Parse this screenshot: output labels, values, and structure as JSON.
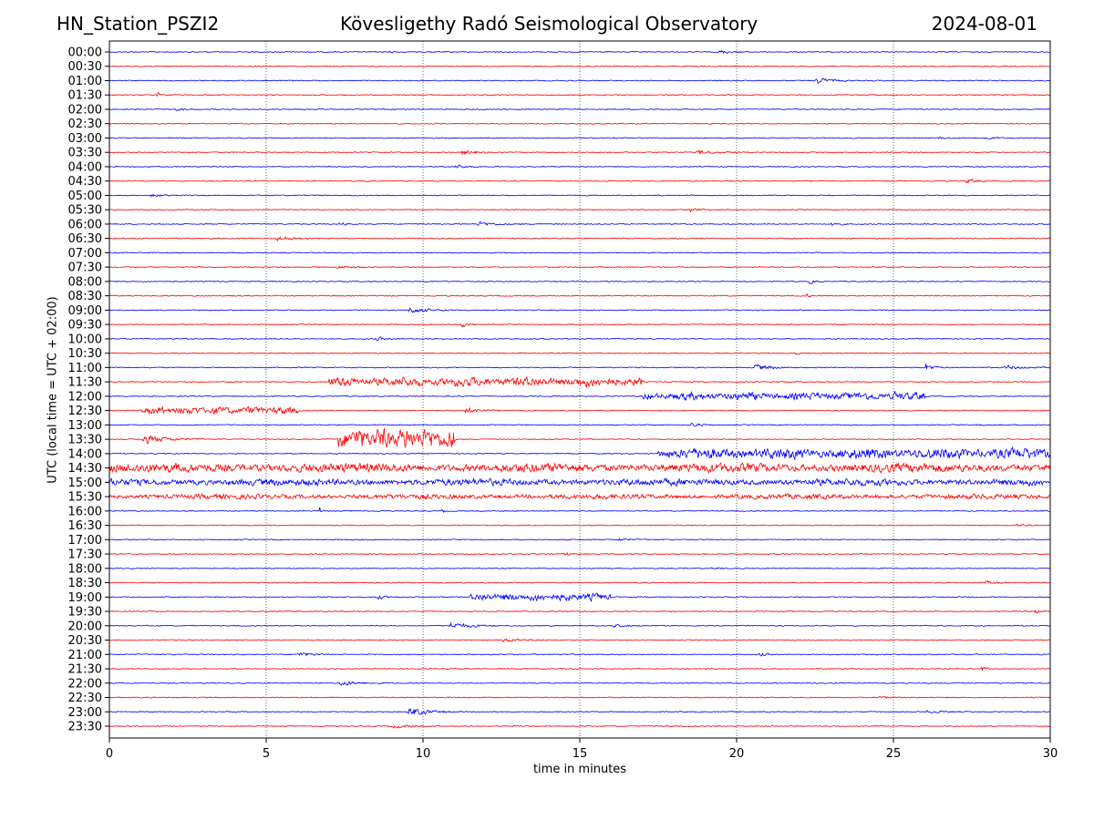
{
  "header": {
    "station": "HN_Station_PSZI2",
    "observatory": "Kövesligethy Radó Seismological Observatory",
    "date": "2024-08-01"
  },
  "chart_data": {
    "type": "line",
    "subtype": "helicorder",
    "title": "Kövesligethy Radó Seismological Observatory",
    "xlabel": "time in minutes",
    "ylabel": "UTC (local time = UTC + 02:00)",
    "xlim": [
      0,
      30
    ],
    "xticks": [
      "0",
      "5",
      "10",
      "15",
      "20",
      "25",
      "30"
    ],
    "grid": "vertical dotted at x ticks",
    "colors": [
      "#0000ff",
      "#ff0000"
    ],
    "rows": [
      "00:00",
      "00:30",
      "01:00",
      "01:30",
      "02:00",
      "02:30",
      "03:00",
      "03:30",
      "04:00",
      "04:30",
      "05:00",
      "05:30",
      "06:00",
      "06:30",
      "07:00",
      "07:30",
      "08:00",
      "08:30",
      "09:00",
      "09:30",
      "10:00",
      "10:30",
      "11:00",
      "11:30",
      "12:00",
      "12:30",
      "13:00",
      "13:30",
      "14:00",
      "14:30",
      "15:00",
      "15:30",
      "16:00",
      "16:30",
      "17:00",
      "17:30",
      "18:00",
      "18:30",
      "19:00",
      "19:30",
      "20:00",
      "20:30",
      "21:00",
      "21:30",
      "22:00",
      "22:30",
      "23:00",
      "23:30"
    ],
    "events": [
      [
        "00:00",
        8.8,
        9.3,
        1
      ],
      [
        "00:00",
        19.4,
        20.6,
        1
      ],
      [
        "01:00",
        22.5,
        23.6,
        2
      ],
      [
        "01:30",
        1.5,
        2.1,
        1.5
      ],
      [
        "02:00",
        2.1,
        2.8,
        1
      ],
      [
        "03:00",
        26.4,
        27.1,
        0.8
      ],
      [
        "03:00",
        27.9,
        28.6,
        1
      ],
      [
        "03:30",
        11.2,
        12.3,
        1.5
      ],
      [
        "03:30",
        18.7,
        20.3,
        1.2
      ],
      [
        "04:00",
        11.0,
        12.0,
        1.2
      ],
      [
        "04:30",
        27.3,
        28.1,
        1.5
      ],
      [
        "05:00",
        1.3,
        2.2,
        1
      ],
      [
        "05:30",
        18.5,
        19.2,
        1.2
      ],
      [
        "06:00",
        7.3,
        7.8,
        1
      ],
      [
        "06:00",
        11.7,
        13.2,
        1.3
      ],
      [
        "06:00",
        23.0,
        23.7,
        1
      ],
      [
        "06:30",
        5.3,
        6.5,
        1.5
      ],
      [
        "07:30",
        7.2,
        8.6,
        1
      ],
      [
        "08:00",
        22.3,
        22.9,
        1.2
      ],
      [
        "08:30",
        22.2,
        22.5,
        1.2
      ],
      [
        "09:00",
        9.5,
        11.0,
        2
      ],
      [
        "09:30",
        11.2,
        11.7,
        2
      ],
      [
        "10:00",
        8.5,
        9.2,
        1.2
      ],
      [
        "10:30",
        21.8,
        22.2,
        1
      ],
      [
        "11:00",
        20.5,
        22.0,
        2
      ],
      [
        "11:00",
        26.0,
        26.6,
        3
      ],
      [
        "11:00",
        28.5,
        30,
        1.3
      ],
      [
        "11:30",
        7.0,
        17.0,
        2.5
      ],
      [
        "12:00",
        17.0,
        26.0,
        2
      ],
      [
        "12:00",
        25.0,
        25.3,
        3
      ],
      [
        "12:30",
        1.0,
        6.0,
        2
      ],
      [
        "12:30",
        11.3,
        12.5,
        2
      ],
      [
        "13:00",
        18.5,
        19.3,
        1.5
      ],
      [
        "13:00",
        27.6,
        28.0,
        1.5
      ],
      [
        "13:30",
        1.0,
        3.0,
        3
      ],
      [
        "13:30",
        7.3,
        11.0,
        6
      ],
      [
        "14:00",
        17.5,
        30.0,
        3
      ],
      [
        "14:30",
        0.0,
        30.0,
        2.5
      ],
      [
        "15:00",
        0.0,
        30.0,
        1.8
      ],
      [
        "15:30",
        0.0,
        30.0,
        1.2
      ],
      [
        "16:00",
        6.7,
        6.8,
        3
      ],
      [
        "16:00",
        10.6,
        10.7,
        3
      ],
      [
        "16:30",
        28.9,
        29.6,
        1.2
      ],
      [
        "17:00",
        16.2,
        17.0,
        1
      ],
      [
        "17:30",
        14.5,
        14.8,
        2
      ],
      [
        "18:00",
        19.3,
        19.7,
        1
      ],
      [
        "18:30",
        27.9,
        29.0,
        0.8
      ],
      [
        "19:00",
        8.5,
        9.2,
        1.5
      ],
      [
        "19:00",
        11.5,
        16.0,
        2
      ],
      [
        "19:30",
        29.5,
        30.0,
        1.2
      ],
      [
        "20:00",
        10.8,
        12.5,
        2
      ],
      [
        "20:00",
        16.0,
        17.0,
        1
      ],
      [
        "20:30",
        12.5,
        14.0,
        1.2
      ],
      [
        "21:00",
        6.0,
        7.0,
        1.5
      ],
      [
        "21:00",
        20.7,
        21.3,
        1
      ],
      [
        "21:30",
        27.8,
        28.2,
        1.5
      ],
      [
        "22:00",
        7.3,
        8.8,
        1.5
      ],
      [
        "22:30",
        24.5,
        25.3,
        1
      ],
      [
        "23:00",
        9.5,
        11.0,
        3
      ],
      [
        "23:00",
        26.0,
        27.5,
        0.8
      ],
      [
        "23:30",
        9.0,
        10.5,
        1
      ]
    ]
  }
}
